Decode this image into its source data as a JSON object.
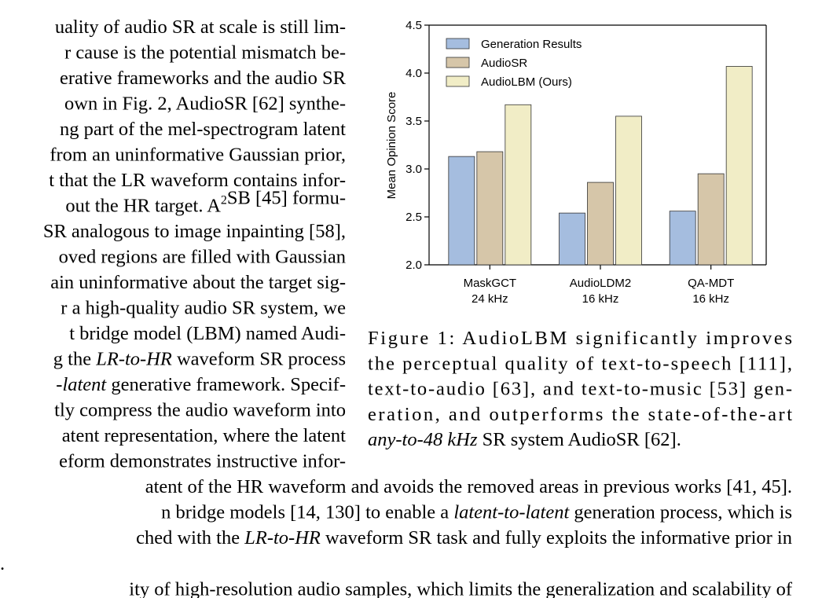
{
  "left_column": {
    "lines": [
      [
        "uality of audio SR at scale is still lim-"
      ],
      [
        "r cause is the potential mismatch be-"
      ],
      [
        "erative frameworks and the audio SR"
      ],
      [
        "own in Fig. 2, AudioSR [62] synthe-"
      ],
      [
        "ng part of the mel-spectrogram latent"
      ],
      [
        "from an uninformative Gaussian prior,"
      ],
      [
        "t that the LR waveform contains infor-"
      ],
      [
        "out the HR target. A",
        {
          "sup": "2"
        },
        "SB [45] formu-"
      ],
      [
        "SR analogous to image inpainting [58],"
      ],
      [
        "oved regions are filled with Gaussian"
      ],
      [
        "ain uninformative about the target sig-"
      ],
      [
        "r a high-quality audio SR system, we"
      ],
      [
        "t bridge model (LBM) named Audi-"
      ],
      [
        "g the ",
        {
          "italic": "LR-to-HR"
        },
        " waveform SR process"
      ],
      [
        {
          "italic": "-latent"
        },
        " generative framework. Specif-"
      ],
      [
        "tly compress the audio waveform into"
      ],
      [
        "atent representation, where the latent"
      ],
      [
        "eform demonstrates instructive infor-"
      ]
    ]
  },
  "bottom_text": {
    "lines": [
      [
        "atent of the HR waveform and avoids the removed areas in previous works [41, 45]."
      ],
      [
        "n bridge models [14, 130] to enable a ",
        {
          "italic": "latent-to-latent"
        },
        " generation process, which is"
      ],
      [
        "ched with the ",
        {
          "italic": "LR-to-HR"
        },
        " waveform SR task and fully exploits the informative prior in"
      ],
      [
        "."
      ],
      [
        "ity of high-resolution audio samples, which limits the generalization and scalability of"
      ]
    ]
  },
  "caption": {
    "lines": [
      [
        "Figure 1: AudioLBM significantly improves"
      ],
      [
        "the perceptual quality of text-to-speech [111],"
      ],
      [
        "text-to-audio [63], and text-to-music [53] gen-"
      ],
      [
        "eration, and outperforms the state-of-the-art"
      ],
      [
        {
          "italic": "any-to-48 kHz"
        },
        " SR system AudioSR [62]."
      ]
    ]
  },
  "chart_data": {
    "type": "bar",
    "y_label": "Mean Opinion Score",
    "categories": [
      [
        "MaskGCT",
        "24 kHz"
      ],
      [
        "AudioLDM2",
        "16 kHz"
      ],
      [
        "QA-MDT",
        "16 kHz"
      ]
    ],
    "series": [
      {
        "name": "Generation Results",
        "color": "#a5bddf",
        "values": [
          3.13,
          2.54,
          2.56
        ]
      },
      {
        "name": "AudioSR",
        "color": "#d6c6a9",
        "values": [
          3.18,
          2.86,
          2.95
        ]
      },
      {
        "name": "AudioLBM (Ours)",
        "color": "#f1edc6",
        "values": [
          3.67,
          3.55,
          4.07
        ]
      }
    ],
    "ylim": [
      2.0,
      4.5
    ],
    "yticks": [
      {
        "value": 2.0,
        "label": "2.0"
      },
      {
        "value": 2.5,
        "label": "2.5"
      },
      {
        "value": 3.0,
        "label": "3.0"
      },
      {
        "value": 3.5,
        "label": "3.5"
      },
      {
        "value": 4.0,
        "label": "4.0"
      },
      {
        "value": 4.5,
        "label": "4.5"
      }
    ],
    "legend": "upper-left"
  }
}
